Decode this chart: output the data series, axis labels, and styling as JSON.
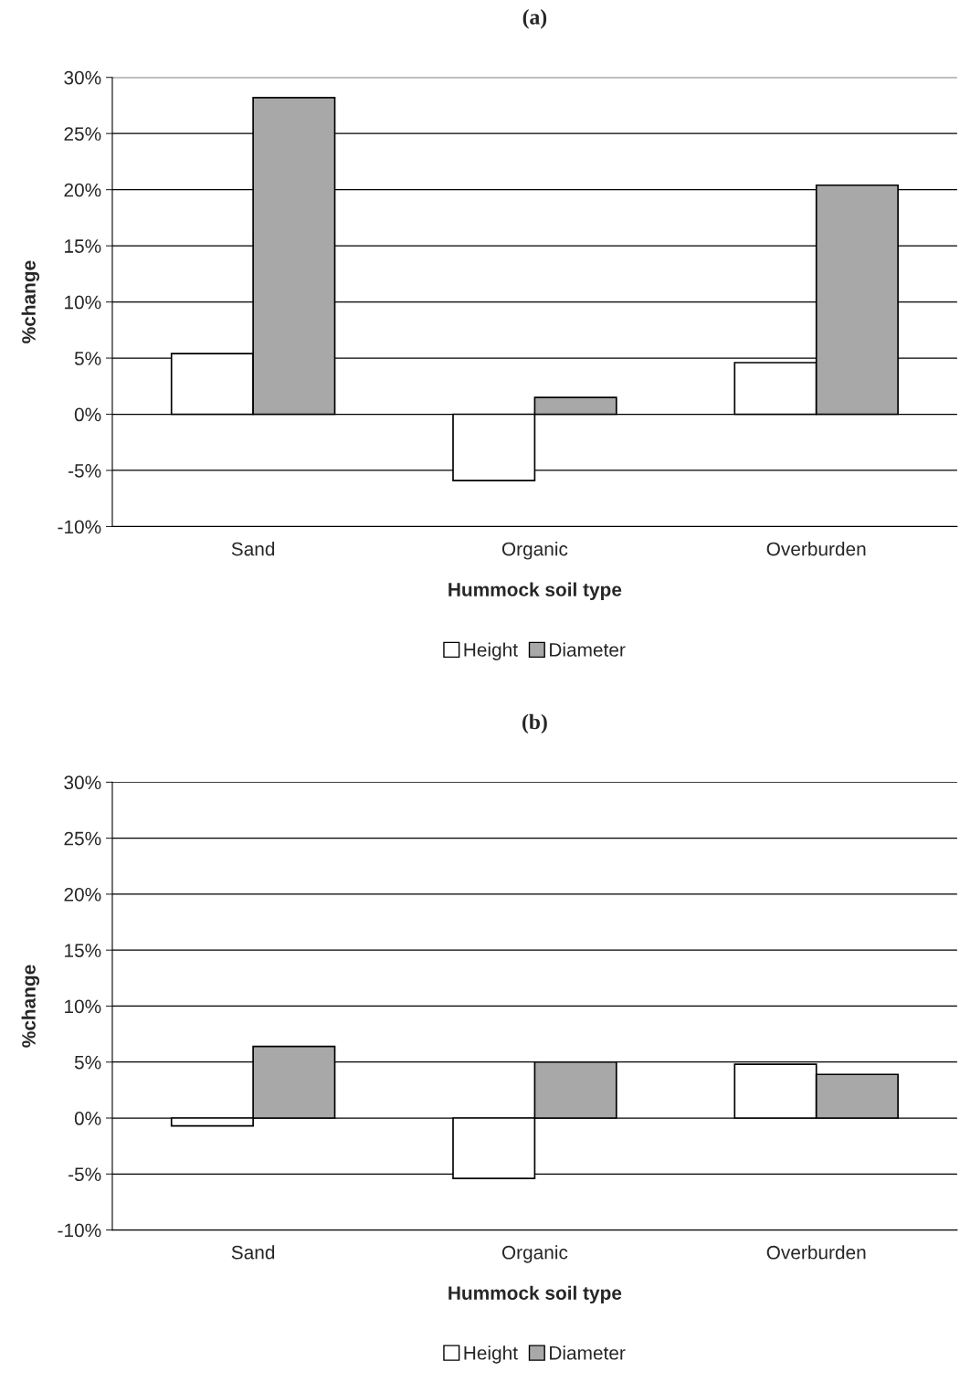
{
  "chart_data": [
    {
      "type": "bar",
      "title": "(a)",
      "xlabel": "Hummock soil type",
      "ylabel": "%change",
      "categories": [
        "Sand",
        "Organic",
        "Overburden"
      ],
      "series": [
        {
          "name": "Height",
          "color": "#ffffff",
          "values": [
            5.4,
            -5.9,
            4.6
          ]
        },
        {
          "name": "Diameter",
          "color": "#a8a8a8",
          "values": [
            28.2,
            1.5,
            20.4
          ]
        }
      ],
      "ylim": [
        -10,
        30
      ],
      "yticks": [
        {
          "value": -10,
          "label": "-10%"
        },
        {
          "value": -5,
          "label": "-5%"
        },
        {
          "value": 0,
          "label": "0%"
        },
        {
          "value": 5,
          "label": "5%"
        },
        {
          "value": 10,
          "label": "10%"
        },
        {
          "value": 15,
          "label": "15%"
        },
        {
          "value": 20,
          "label": "20%"
        },
        {
          "value": 25,
          "label": "25%"
        },
        {
          "value": 30,
          "label": "30%"
        }
      ],
      "grid": "y",
      "legend": "bottom"
    },
    {
      "type": "bar",
      "title": "(b)",
      "xlabel": "Hummock soil type",
      "ylabel": "%change",
      "categories": [
        "Sand",
        "Organic",
        "Overburden"
      ],
      "series": [
        {
          "name": "Height",
          "color": "#ffffff",
          "values": [
            -0.7,
            -5.4,
            4.8
          ]
        },
        {
          "name": "Diameter",
          "color": "#a8a8a8",
          "values": [
            6.4,
            5.0,
            3.9
          ]
        }
      ],
      "ylim": [
        -10,
        30
      ],
      "yticks": [
        {
          "value": -10,
          "label": "-10%"
        },
        {
          "value": -5,
          "label": "-5%"
        },
        {
          "value": 0,
          "label": "0%"
        },
        {
          "value": 5,
          "label": "5%"
        },
        {
          "value": 10,
          "label": "10%"
        },
        {
          "value": 15,
          "label": "15%"
        },
        {
          "value": 20,
          "label": "20%"
        },
        {
          "value": 25,
          "label": "25%"
        },
        {
          "value": 30,
          "label": "30%"
        }
      ],
      "grid": "y",
      "legend": "bottom"
    }
  ]
}
